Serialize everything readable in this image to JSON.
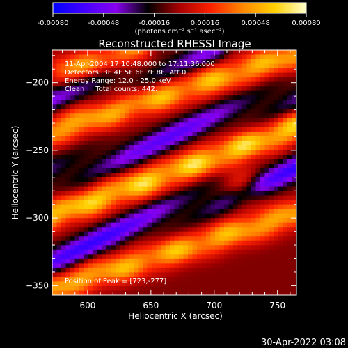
{
  "colorbar": {
    "tick_labels": [
      "-0.00080",
      "-0.00048",
      "-0.00016",
      "0.00016",
      "0.00048",
      "0.00080"
    ],
    "unit_label": "(photons cm⁻² s⁻¹ asec⁻²)",
    "range": [
      -0.0008,
      0.0008
    ],
    "stops": [
      "#0000ff",
      "#4400ff",
      "#8800ee",
      "#000000",
      "#aa0000",
      "#ff2200",
      "#ff8800",
      "#ffd000",
      "#ffffcc"
    ]
  },
  "title": "Reconstructed RHESSI Image",
  "annotations": {
    "line1": "11-Apr-2004 17:10:48.000 to 17:11:36.000",
    "line2": "Detectors: 3F 4F 5F 6F 7F 8F, Att 0",
    "line3": "Energy Range: 12.0 - 25.0 keV",
    "line4": "Clean     Total counts: 442.",
    "peak": "Position of Peak = [723,-277]"
  },
  "footer_timestamp": "30-Apr-2022 03:08",
  "chart_data": {
    "type": "heatmap",
    "title": "Reconstructed RHESSI Image",
    "xlabel": "Heliocentric X (arcsec)",
    "ylabel": "Heliocentric Y (arcsec)",
    "xlim": [
      572,
      765
    ],
    "ylim": [
      -357,
      -176
    ],
    "xticks": [
      600,
      650,
      700,
      750
    ],
    "yticks": [
      -350,
      -300,
      -250,
      -200
    ],
    "colormap_range": [
      -0.0008,
      0.0008
    ],
    "peak_position": [
      723,
      -277
    ],
    "ridges": [
      {
        "x0": 572,
        "y0": -236,
        "x1": 765,
        "y1": -179,
        "value": 0.0006
      },
      {
        "x0": 572,
        "y0": -298,
        "x1": 765,
        "y1": -233,
        "value": 0.0007
      },
      {
        "x0": 572,
        "y0": -352,
        "x1": 765,
        "y1": -297,
        "value": 0.0006
      },
      {
        "x0": 580,
        "y0": -192,
        "x1": 640,
        "y1": -176,
        "value": 0.0005
      }
    ],
    "troughs": [
      {
        "x0": 572,
        "y0": -270,
        "x1": 765,
        "y1": -208,
        "value": -0.0005
      },
      {
        "x0": 572,
        "y0": -330,
        "x1": 765,
        "y1": -262,
        "value": -0.0006
      },
      {
        "x0": 572,
        "y0": -214,
        "x1": 700,
        "y1": -176,
        "value": -0.0004
      }
    ],
    "grid": false
  }
}
